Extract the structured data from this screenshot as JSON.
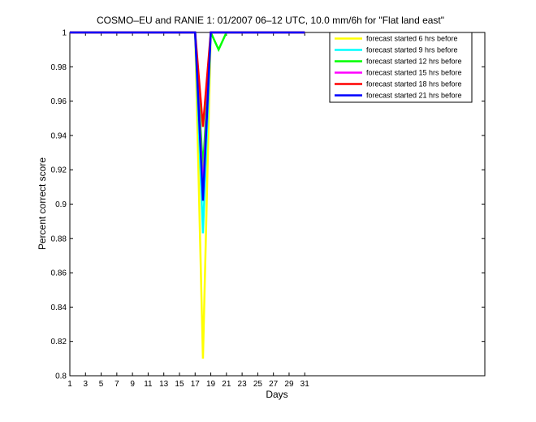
{
  "chart_data": {
    "type": "line",
    "title": "COSMO–EU and RANIE 1: 01/2007 06–12 UTC, 10.0 mm/6h for \"Flat land east\"",
    "xlabel": "Days",
    "ylabel": "Percent correct score",
    "xlim": [
      1,
      54
    ],
    "ylim": [
      0.8,
      1.0
    ],
    "x_ticks": [
      1,
      3,
      5,
      7,
      9,
      11,
      13,
      15,
      17,
      19,
      21,
      23,
      25,
      27,
      29,
      31
    ],
    "y_ticks": [
      0.8,
      0.82,
      0.84,
      0.86,
      0.88,
      0.9,
      0.92,
      0.94,
      0.96,
      0.98,
      1
    ],
    "y_tick_labels": [
      "0.8",
      "0.82",
      "0.84",
      "0.86",
      "0.88",
      "0.9",
      "0.92",
      "0.94",
      "0.96",
      "0.98",
      "1"
    ],
    "grid": false,
    "legend_position": "top-right",
    "x": [
      1,
      2,
      3,
      4,
      5,
      6,
      7,
      8,
      9,
      10,
      11,
      12,
      13,
      14,
      15,
      16,
      17,
      18,
      19,
      20,
      21,
      22,
      23,
      24,
      25,
      26,
      27,
      28,
      29,
      30,
      31
    ],
    "series": [
      {
        "name": "forecast started 6 hrs before",
        "color": "#ffff00",
        "values": [
          1,
          1,
          1,
          1,
          1,
          1,
          1,
          1,
          1,
          1,
          1,
          1,
          1,
          1,
          1,
          1,
          1,
          0.81,
          1,
          1,
          1,
          1,
          1,
          1,
          1,
          1,
          1,
          1,
          1,
          1,
          1
        ]
      },
      {
        "name": "forecast started 9 hrs before",
        "color": "#00ffff",
        "values": [
          1,
          1,
          1,
          1,
          1,
          1,
          1,
          1,
          1,
          1,
          1,
          1,
          1,
          1,
          1,
          1,
          1,
          0.883,
          1,
          1,
          1,
          1,
          1,
          1,
          1,
          1,
          1,
          1,
          1,
          1,
          1
        ]
      },
      {
        "name": "forecast started 12 hrs before",
        "color": "#00ff00",
        "values": [
          1,
          1,
          1,
          1,
          1,
          1,
          1,
          1,
          1,
          1,
          1,
          1,
          1,
          1,
          1,
          1,
          1,
          0.92,
          1,
          0.99,
          1,
          1,
          1,
          1,
          1,
          1,
          1,
          1,
          1,
          1,
          1
        ]
      },
      {
        "name": "forecast started 15 hrs before",
        "color": "#ff00ff",
        "values": [
          1,
          1,
          1,
          1,
          1,
          1,
          1,
          1,
          1,
          1,
          1,
          1,
          1,
          1,
          1,
          1,
          1,
          0.908,
          1,
          1,
          1,
          1,
          1,
          1,
          1,
          1,
          1,
          1,
          1,
          1,
          1
        ]
      },
      {
        "name": "forecast started 18 hrs before",
        "color": "#ff0000",
        "values": [
          1,
          1,
          1,
          1,
          1,
          1,
          1,
          1,
          1,
          1,
          1,
          1,
          1,
          1,
          1,
          1,
          1,
          0.945,
          1,
          1,
          1,
          1,
          1,
          1,
          1,
          1,
          1,
          1,
          1,
          1,
          1
        ]
      },
      {
        "name": "forecast started 21 hrs before",
        "color": "#0000ff",
        "values": [
          1,
          1,
          1,
          1,
          1,
          1,
          1,
          1,
          1,
          1,
          1,
          1,
          1,
          1,
          1,
          1,
          1,
          0.902,
          1,
          1,
          1,
          1,
          1,
          1,
          1,
          1,
          1,
          1,
          1,
          1,
          1
        ]
      }
    ]
  }
}
